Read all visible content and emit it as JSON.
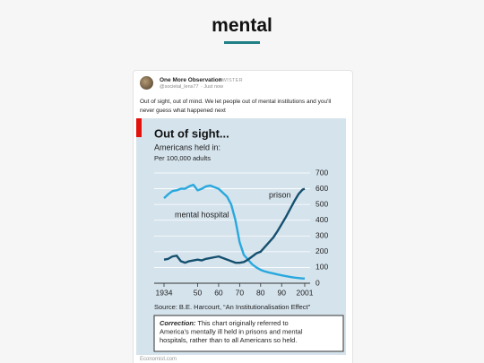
{
  "page": {
    "title": "mental"
  },
  "post": {
    "name": "One More Observation",
    "platform": "TWISTER",
    "handle": "@societal_lens77",
    "time": "· Just now",
    "text": "Out of sight, out of mind. We let people out of mental institutions and you'll never guess what happened next",
    "footer": "Economist.com"
  },
  "chart_data": {
    "type": "line",
    "title": "Out of sight...",
    "subtitle": "Americans held in:",
    "unit": "Per 100,000 adults",
    "source": "Source: B.E. Harcourt, “An Institutionalisation Effect”",
    "correction_label": "Correction:",
    "correction_lines": [
      " This chart originally referred to",
      "America’s mentally ill held in prisons and mental",
      "hospitals, rather than to all Americans so held."
    ],
    "x": [
      1934,
      1936,
      1938,
      1940,
      1942,
      1944,
      1946,
      1948,
      1950,
      1952,
      1954,
      1956,
      1958,
      1960,
      1962,
      1964,
      1966,
      1968,
      1970,
      1972,
      1974,
      1976,
      1978,
      1980,
      1982,
      1984,
      1986,
      1988,
      1990,
      1992,
      1994,
      1996,
      1998,
      2000,
      2001
    ],
    "series": [
      {
        "name": "mental hospital",
        "color": "#29a8de",
        "values": [
          540,
          565,
          585,
          590,
          600,
          600,
          615,
          625,
          590,
          600,
          615,
          620,
          610,
          600,
          575,
          550,
          500,
          400,
          260,
          180,
          150,
          120,
          100,
          85,
          75,
          68,
          62,
          56,
          50,
          45,
          40,
          36,
          33,
          30,
          30
        ]
      },
      {
        "name": "prison",
        "color": "#15506f",
        "values": [
          150,
          155,
          170,
          175,
          140,
          130,
          140,
          145,
          150,
          145,
          155,
          160,
          165,
          170,
          160,
          150,
          140,
          130,
          130,
          135,
          150,
          170,
          190,
          200,
          230,
          260,
          290,
          330,
          375,
          420,
          470,
          520,
          565,
          595,
          600
        ]
      }
    ],
    "xlim": [
      1934,
      2001
    ],
    "ylim": [
      0,
      700
    ],
    "xticks": [
      1934,
      {
        "value": 1950,
        "label": "50"
      },
      {
        "value": 1960,
        "label": "60"
      },
      {
        "value": 1970,
        "label": "70"
      },
      {
        "value": 1980,
        "label": "80"
      },
      {
        "value": 1990,
        "label": "90"
      },
      2001
    ],
    "yticks": [
      0,
      100,
      200,
      300,
      400,
      500,
      600,
      700
    ],
    "grid": true
  }
}
